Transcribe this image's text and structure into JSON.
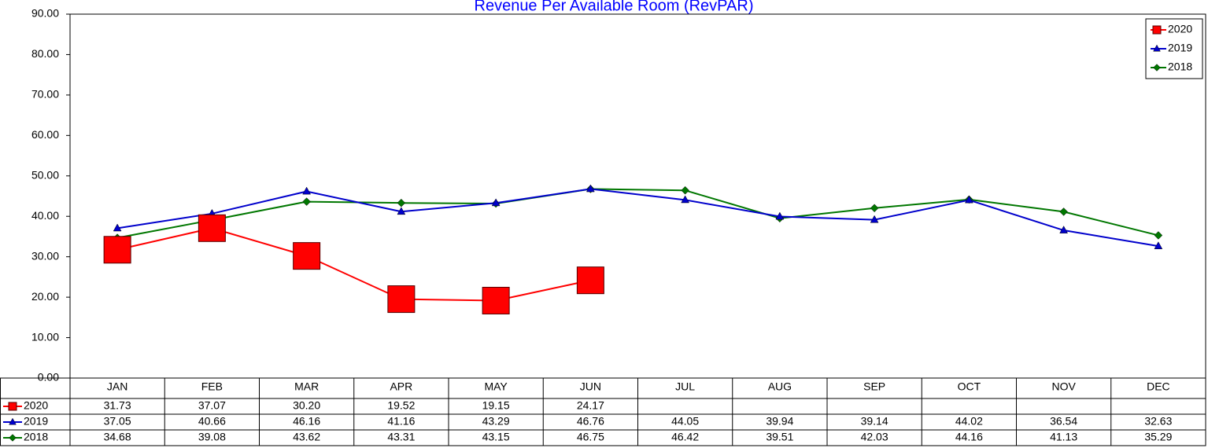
{
  "chart_data": {
    "type": "line",
    "title": "Revenue Per Available Room (RevPAR)",
    "categories": [
      "JAN",
      "FEB",
      "MAR",
      "APR",
      "MAY",
      "JUN",
      "JUL",
      "AUG",
      "SEP",
      "OCT",
      "NOV",
      "DEC"
    ],
    "series": [
      {
        "name": "2020",
        "color": "#ff0000",
        "marker": "square",
        "values": [
          31.73,
          37.07,
          30.2,
          19.52,
          19.15,
          24.17,
          null,
          null,
          null,
          null,
          null,
          null
        ],
        "value_labels": [
          "31.73",
          "37.07",
          "30.20",
          "19.52",
          "19.15",
          "24.17",
          null,
          null,
          null,
          null,
          null,
          null
        ]
      },
      {
        "name": "2019",
        "color": "#0000cc",
        "marker": "triangle",
        "values": [
          37.05,
          40.66,
          46.16,
          41.16,
          43.29,
          46.76,
          44.05,
          39.94,
          39.14,
          44.02,
          36.54,
          32.63
        ],
        "value_labels": [
          "37.05",
          "40.66",
          "46.16",
          "41.16",
          "43.29",
          "46.76",
          "44.05",
          "39.94",
          "39.14",
          "44.02",
          "36.54",
          "32.63"
        ]
      },
      {
        "name": "2018",
        "color": "#007700",
        "marker": "diamond",
        "values": [
          34.68,
          39.08,
          43.62,
          43.31,
          43.15,
          46.75,
          46.42,
          39.51,
          42.03,
          44.16,
          41.13,
          35.29
        ],
        "value_labels": [
          "34.68",
          "39.08",
          "43.62",
          "43.31",
          "43.15",
          "46.75",
          "46.42",
          "39.51",
          "42.03",
          "44.16",
          "41.13",
          "35.29"
        ]
      }
    ],
    "ylim": [
      0,
      90
    ],
    "yticks": [
      {
        "value": 0,
        "label": "0.00"
      },
      {
        "value": 10,
        "label": "10.00"
      },
      {
        "value": 20,
        "label": "20.00"
      },
      {
        "value": 30,
        "label": "30.00"
      },
      {
        "value": 40,
        "label": "40.00"
      },
      {
        "value": 50,
        "label": "50.00"
      },
      {
        "value": 60,
        "label": "60.00"
      },
      {
        "value": 70,
        "label": "70.00"
      },
      {
        "value": 80,
        "label": "80.00"
      },
      {
        "value": 90,
        "label": "90.00"
      }
    ],
    "legend": "top-right",
    "grid": false
  }
}
